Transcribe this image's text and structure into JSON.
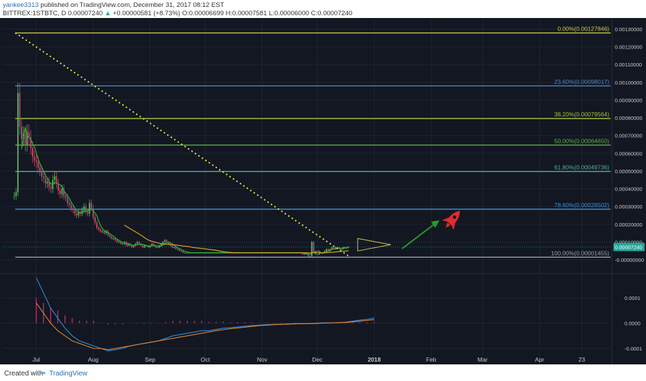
{
  "header": {
    "author": "yankee3313",
    "published": "published on TradingView.com, December 31, 2017 08:12 EST",
    "symbol": "BITTREX:1STBTC, D",
    "last": "0.00007240",
    "change": "+0.00000581 (+8.73%)",
    "ohlc": "O:0.00006699 H:0.00007581 L:0.00006000 C:0.00007240"
  },
  "footer": {
    "created": "Created with",
    "brand": "TradingView"
  },
  "colors": {
    "bg": "#131722",
    "grid": "#1f2434",
    "text": "#c5cbce",
    "candle_up": "#5cb85c",
    "candle_down": "#c44c6c",
    "ma_fast": "#2db52d",
    "ma_slow": "#e0a12c",
    "macd": "#2f8ee0",
    "signal": "#e0852c",
    "hist_pos": "#b0306b",
    "hist_neg": "#b0306b",
    "trend": "#e6e63a",
    "arrow": "#23a023",
    "rocket": "#e02c2c"
  },
  "chart_data": [
    {
      "type": "candlestick",
      "title": "BITTREX:1STBTC, D",
      "y_scale": "linear",
      "ylim": [
        -2e-05,
        0.00013
      ],
      "y_ticks": [
        "0.00130000",
        "0.00120000",
        "0.00110000",
        "0.00100000",
        "0.00090000",
        "0.00080000",
        "0.00070000",
        "0.00060000",
        "0.00050000",
        "0.00040000",
        "0.00030000",
        "0.00020000",
        "0.00010000",
        "-0.00000000"
      ],
      "y_tick_values": [
        0.0013,
        0.0012,
        0.0011,
        0.001,
        0.0009,
        0.0008,
        0.0007,
        0.0006,
        0.0005,
        0.0004,
        0.0003,
        0.0002,
        0.0001,
        0.0
      ],
      "x_ticks": [
        "Jul",
        "Aug",
        "Sep",
        "Oct",
        "Nov",
        "Dec",
        "2018",
        "Feb",
        "Mar",
        "Apr",
        "23"
      ],
      "x_tick_day": [
        12,
        43,
        74,
        104,
        135,
        165,
        196,
        227,
        255,
        286,
        309
      ],
      "last_price_label": "0.00007240",
      "fibonacci": [
        {
          "label": "0.00%(0.00127846)",
          "value": 0.00127846,
          "color": "#c9c94b"
        },
        {
          "label": "23.60%(0.00098017)",
          "value": 0.00098017,
          "color": "#4c86c4"
        },
        {
          "label": "38.20%(0.00079564)",
          "value": 0.00079564,
          "color": "#a8c23a"
        },
        {
          "label": "50.00%(0.00064650)",
          "value": 0.0006465,
          "color": "#5bb34a"
        },
        {
          "label": "61.80%(0.00049736)",
          "value": 0.00049736,
          "color": "#4ab59a"
        },
        {
          "label": "78.60%(0.00028502)",
          "value": 0.00028502,
          "color": "#3d8ed1"
        },
        {
          "label": "100.00%(0.00001455)",
          "value": 1.455e-05,
          "color": "#9aa0a6"
        }
      ],
      "candles_close": [
        0.00036,
        0.00038,
        0.00094,
        0.00075,
        0.00068,
        0.00071,
        0.00065,
        0.00072,
        0.00069,
        0.00063,
        0.00058,
        0.00056,
        0.00055,
        0.00052,
        0.0005,
        0.00047,
        0.00046,
        0.00043,
        0.00044,
        0.00041,
        0.0004,
        0.00045,
        0.00047,
        0.00043,
        0.00039,
        0.00037,
        0.0004,
        0.00036,
        0.00035,
        0.00032,
        0.00031,
        0.00029,
        0.00028,
        0.00026,
        0.00025,
        0.00027,
        0.00026,
        0.00028,
        0.0003,
        0.00027,
        0.00026,
        0.00032,
        0.00029,
        0.00024,
        0.00021,
        0.00018,
        0.00017,
        0.00016,
        0.00016,
        0.00015,
        0.00016,
        0.00014,
        0.00013,
        0.00012,
        0.00012,
        0.00011,
        0.0001,
        0.0001,
        9e-05,
        9e-05,
        0.0001,
        8e-05,
        9e-05,
        8e-05,
        7e-05,
        8e-05,
        9e-05,
        0.0001,
        9e-05,
        8e-05,
        7e-05,
        8e-05,
        8e-05,
        7e-05,
        8e-05,
        9e-05,
        8e-05,
        7e-05,
        7e-05,
        8e-05,
        9e-05,
        0.0001,
        0.00011,
        0.0001,
        9e-05,
        8e-05,
        7e-05,
        7e-05,
        6e-05,
        6e-05,
        5e-05,
        5e-05,
        4e-05,
        4e-05,
        4e-05,
        4e-05,
        4e-05,
        4e-05,
        4e-05,
        4e-05,
        4e-05,
        4e-05,
        4e-05,
        4e-05,
        4e-05,
        4e-05,
        4e-05,
        4e-05,
        4e-05,
        4e-05,
        4e-05,
        4e-05,
        4e-05,
        4e-05,
        4e-05,
        4e-05,
        4e-05,
        4e-05,
        4e-05,
        4e-05,
        4e-05,
        4e-05,
        4e-05,
        4e-05,
        4e-05,
        4e-05,
        4e-05,
        4e-05,
        4e-05,
        4e-05,
        4e-05,
        4e-05,
        4e-05,
        4e-05,
        4e-05,
        4e-05,
        4e-05,
        4e-05,
        4e-05,
        4e-05,
        4e-05,
        4e-05,
        4e-05,
        4e-05,
        4e-05,
        4e-05,
        4e-05,
        4e-05,
        4e-05,
        4e-05,
        4e-05,
        4e-05,
        4e-05,
        4e-05,
        4e-05,
        4e-05,
        4e-05,
        3e-05,
        4e-05,
        3e-05,
        2e-05,
        2e-05,
        0.0001,
        5e-05,
        3e-05,
        3e-05,
        4e-05,
        4e-05,
        4e-05,
        5e-05,
        6e-05,
        5e-05,
        6e-05,
        7e-05,
        6e-05,
        7e-05,
        7e-05,
        6e-05,
        6e-05,
        7e-05,
        7e-05,
        7e-05,
        7.2e-05
      ],
      "first_candle_day": 0
    },
    {
      "type": "line",
      "title": "MACD",
      "ylim": [
        -0.00012,
        0.00018
      ],
      "y_ticks": [
        "0.0001",
        "0.0000",
        "-0.0001"
      ],
      "y_tick_values": [
        0.0001,
        0.0,
        -0.0001
      ],
      "series": [
        {
          "values": [
            0.00018,
            0.00012,
            6e-05,
            2e-05,
            -2e-05,
            -5e-05,
            -7e-05,
            -8e-05,
            -9e-05,
            -0.0001,
            -0.00011,
            -0.000105,
            -0.0001,
            -9e-05,
            -8.5e-05,
            -8e-05,
            -7.5e-05,
            -7e-05,
            -6e-05,
            -5e-05,
            -4.5e-05,
            -4e-05,
            -3.5e-05,
            -3e-05,
            -3e-05,
            -2.5e-05,
            -2e-05,
            -1.8e-05,
            -1.5e-05,
            -1.2e-05,
            -1e-05,
            -8e-06,
            -6e-06,
            -5e-06,
            -4e-06,
            -3e-06,
            -2e-06,
            -2e-06,
            -1e-06,
            0.0,
            1e-06,
            1e-06,
            2e-06,
            4e-06,
            8e-06,
            1.2e-05,
            1.5e-05,
            2e-05
          ]
        },
        {
          "values": [
            8e-05,
            4e-05,
            0.0,
            -3e-05,
            -5e-05,
            -7e-05,
            -8e-05,
            -9e-05,
            -0.0001,
            -0.0001,
            -0.000105,
            -0.0001,
            -9.5e-05,
            -9e-05,
            -8.5e-05,
            -8e-05,
            -7.5e-05,
            -7e-05,
            -6.5e-05,
            -6e-05,
            -5.5e-05,
            -5e-05,
            -4.5e-05,
            -4e-05,
            -3.5e-05,
            -3e-05,
            -2.6e-05,
            -2.2e-05,
            -1.9e-05,
            -1.6e-05,
            -1.3e-05,
            -1e-05,
            -8e-06,
            -6e-06,
            -5e-06,
            -4e-06,
            -3e-06,
            -2e-06,
            -2e-06,
            -1e-06,
            0.0,
            1e-06,
            2e-06,
            3e-06,
            5e-06,
            8e-06,
            1.1e-05,
            1.4e-05
          ]
        }
      ]
    }
  ]
}
